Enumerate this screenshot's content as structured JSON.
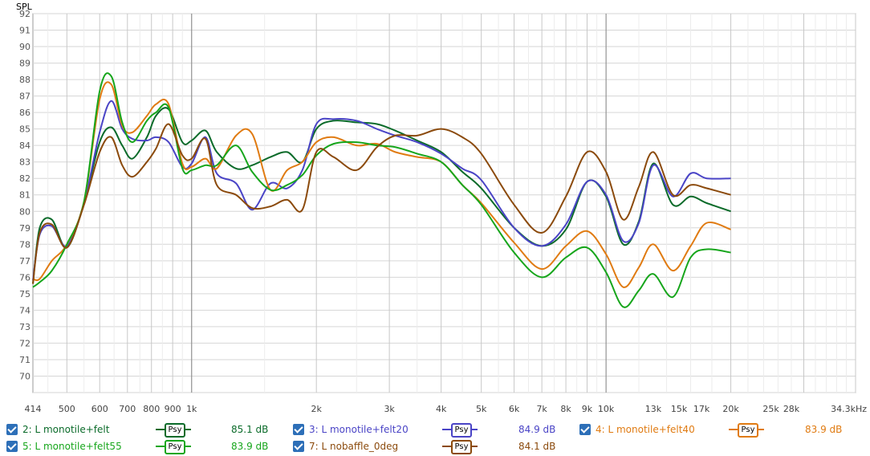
{
  "chart_data": {
    "type": "line",
    "ylabel": "SPL",
    "ylim": [
      69,
      92
    ],
    "xlim": [
      414,
      40000
    ],
    "x_scale": "log",
    "y_ticks": [
      92,
      91,
      90,
      89,
      88,
      87,
      86,
      85,
      84,
      83,
      82,
      81,
      80,
      79,
      78,
      77,
      76,
      75,
      74,
      73,
      72,
      71,
      70
    ],
    "x_ticks": [
      {
        "label": "414",
        "value": 414
      },
      {
        "label": "500",
        "value": 500
      },
      {
        "label": "600",
        "value": 600
      },
      {
        "label": "700",
        "value": 700
      },
      {
        "label": "800",
        "value": 800
      },
      {
        "label": "900",
        "value": 900
      },
      {
        "label": "1k",
        "value": 1000
      },
      {
        "label": "2k",
        "value": 2000
      },
      {
        "label": "3k",
        "value": 3000
      },
      {
        "label": "4k",
        "value": 4000
      },
      {
        "label": "5k",
        "value": 5000
      },
      {
        "label": "6k",
        "value": 6000
      },
      {
        "label": "7k",
        "value": 7000
      },
      {
        "label": "8k",
        "value": 8000
      },
      {
        "label": "9k",
        "value": 9000
      },
      {
        "label": "10k",
        "value": 10000
      },
      {
        "label": "13k",
        "value": 13000
      },
      {
        "label": "15k",
        "value": 15000
      },
      {
        "label": "17k",
        "value": 17000
      },
      {
        "label": "20k",
        "value": 20000
      },
      {
        "label": "25k",
        "value": 25000
      },
      {
        "label": "28k",
        "value": 28000
      },
      {
        "label": "34.3kHz",
        "value": 34300
      }
    ],
    "series": [
      {
        "name": "2: L monotile+felt",
        "color": "#0b6b2a",
        "x": [
          414,
          430,
          460,
          500,
          550,
          600,
          640,
          680,
          720,
          780,
          820,
          880,
          950,
          1000,
          1080,
          1150,
          1280,
          1400,
          1550,
          1700,
          1850,
          2000,
          2200,
          2500,
          2800,
          3100,
          3500,
          4000,
          4500,
          5000,
          6000,
          7000,
          8000,
          9000,
          10000,
          11000,
          12000,
          13000,
          14500,
          16000,
          17500,
          20000
        ],
        "values": [
          75.6,
          79.0,
          79.5,
          77.8,
          80.5,
          84.2,
          85.1,
          84.0,
          83.2,
          84.5,
          85.8,
          86.2,
          84.2,
          84.3,
          84.9,
          83.6,
          82.6,
          82.8,
          83.3,
          83.6,
          83.0,
          85.0,
          85.5,
          85.4,
          85.3,
          84.9,
          84.3,
          83.6,
          82.4,
          81.4,
          79.0,
          77.9,
          78.9,
          81.8,
          80.9,
          78.0,
          79.4,
          82.9,
          80.4,
          80.9,
          80.5,
          80.0
        ]
      },
      {
        "name": "3: L monotile+felt20",
        "color": "#4a44c6",
        "x": [
          414,
          430,
          460,
          500,
          550,
          600,
          640,
          680,
          720,
          780,
          820,
          880,
          950,
          1000,
          1080,
          1150,
          1280,
          1400,
          1550,
          1700,
          1850,
          2000,
          2200,
          2500,
          2800,
          3100,
          3500,
          4000,
          4500,
          5000,
          6000,
          7000,
          8000,
          9000,
          10000,
          11000,
          12000,
          13000,
          14500,
          16000,
          17500,
          20000
        ],
        "values": [
          75.8,
          78.6,
          79.1,
          77.9,
          80.5,
          84.8,
          86.7,
          85.0,
          84.4,
          84.3,
          84.5,
          84.2,
          82.7,
          82.9,
          84.5,
          82.3,
          81.7,
          80.1,
          81.7,
          81.4,
          82.5,
          85.3,
          85.6,
          85.5,
          85.0,
          84.6,
          84.2,
          83.5,
          82.6,
          81.9,
          79.0,
          77.9,
          79.2,
          81.8,
          81.0,
          78.2,
          79.3,
          82.8,
          80.9,
          82.3,
          82.0,
          82.0
        ]
      },
      {
        "name": "4: L monotile+felt40",
        "color": "#e07b12",
        "x": [
          414,
          430,
          460,
          500,
          550,
          600,
          640,
          680,
          720,
          780,
          820,
          880,
          950,
          1000,
          1080,
          1150,
          1280,
          1400,
          1550,
          1700,
          1850,
          2000,
          2200,
          2500,
          2800,
          3100,
          3500,
          4000,
          4500,
          5000,
          6000,
          7000,
          8000,
          9000,
          10000,
          11000,
          12000,
          13000,
          14500,
          16000,
          17500,
          20000
        ],
        "values": [
          75.9,
          75.9,
          77.0,
          78.0,
          80.6,
          86.8,
          87.7,
          85.2,
          84.8,
          85.8,
          86.5,
          86.5,
          82.9,
          82.7,
          83.2,
          82.6,
          84.6,
          84.7,
          81.3,
          82.5,
          83.0,
          84.2,
          84.5,
          84.0,
          84.1,
          83.6,
          83.3,
          83.0,
          81.6,
          80.5,
          78.1,
          76.5,
          77.9,
          78.8,
          77.4,
          75.4,
          76.6,
          78.0,
          76.4,
          77.9,
          79.3,
          78.9
        ]
      },
      {
        "name": "5: L monotile+felt55",
        "color": "#17a61c",
        "x": [
          414,
          430,
          460,
          500,
          550,
          600,
          640,
          680,
          720,
          780,
          820,
          880,
          950,
          1000,
          1080,
          1150,
          1280,
          1400,
          1550,
          1700,
          1850,
          2000,
          2200,
          2500,
          2800,
          3100,
          3500,
          4000,
          4500,
          5000,
          6000,
          7000,
          8000,
          9000,
          10000,
          11000,
          12000,
          13000,
          14500,
          16000,
          17500,
          20000
        ],
        "values": [
          75.4,
          75.7,
          76.4,
          78.0,
          80.6,
          87.3,
          88.2,
          85.4,
          84.2,
          85.5,
          86.0,
          86.3,
          82.6,
          82.5,
          82.8,
          82.8,
          84.0,
          82.4,
          81.3,
          81.6,
          82.2,
          83.4,
          84.1,
          84.2,
          84.0,
          83.9,
          83.5,
          83.0,
          81.6,
          80.4,
          77.5,
          76.0,
          77.2,
          77.8,
          76.3,
          74.2,
          75.2,
          76.2,
          74.8,
          77.2,
          77.7,
          77.5
        ]
      },
      {
        "name": "7: L nobaffle_0deg",
        "color": "#8b4a0c",
        "x": [
          414,
          430,
          460,
          500,
          550,
          600,
          640,
          680,
          720,
          780,
          820,
          880,
          950,
          1000,
          1080,
          1150,
          1280,
          1400,
          1550,
          1700,
          1850,
          2000,
          2200,
          2500,
          2800,
          3100,
          3500,
          4000,
          4500,
          5000,
          6000,
          7000,
          8000,
          9000,
          10000,
          11000,
          12000,
          13000,
          14500,
          16000,
          17500,
          20000
        ],
        "values": [
          75.6,
          78.7,
          79.2,
          77.8,
          80.4,
          83.6,
          84.5,
          82.8,
          82.1,
          83.0,
          83.8,
          85.3,
          83.4,
          83.2,
          84.4,
          81.6,
          81.0,
          80.2,
          80.3,
          80.7,
          80.1,
          83.6,
          83.3,
          82.5,
          83.9,
          84.6,
          84.6,
          85.0,
          84.5,
          83.5,
          80.4,
          78.7,
          80.9,
          83.6,
          82.4,
          79.5,
          81.5,
          83.6,
          81.0,
          81.6,
          81.4,
          81.0
        ]
      }
    ]
  },
  "legend": {
    "items": [
      {
        "label": "2: L monotile+felt",
        "psy": "Psy",
        "value": "85.1 dB",
        "color": "#0b6b2a"
      },
      {
        "label": "3: L monotile+felt20",
        "psy": "Psy",
        "value": "84.9 dB",
        "color": "#4a44c6"
      },
      {
        "label": "4: L monotile+felt40",
        "psy": "Psy",
        "value": "83.9 dB",
        "color": "#e07b12"
      },
      {
        "label": "5: L monotile+felt55",
        "psy": "Psy",
        "value": "83.9 dB",
        "color": "#17a61c"
      },
      {
        "label": "7: L nobaffle_0deg",
        "psy": "Psy",
        "value": "84.1 dB",
        "color": "#8b4a0c"
      }
    ]
  }
}
